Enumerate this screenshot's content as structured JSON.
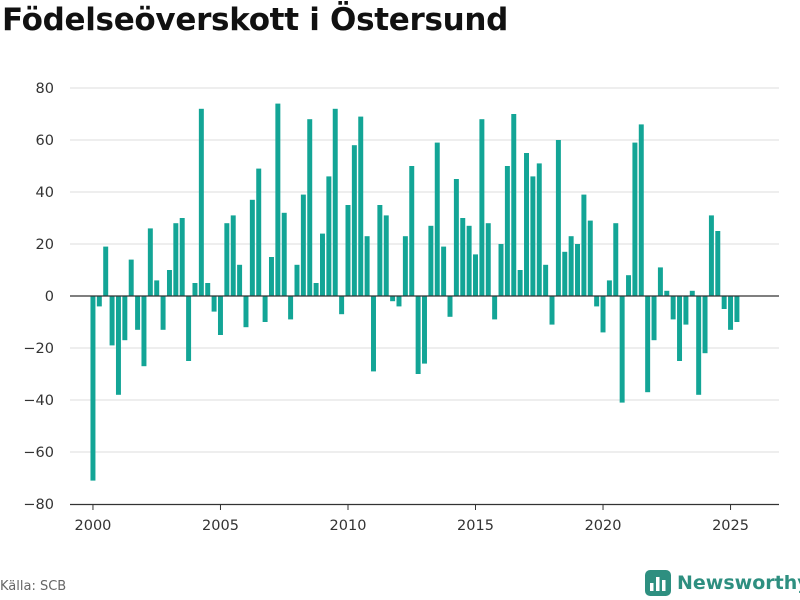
{
  "title": "Födelseöverskott i Östersund",
  "source": "Källa: SCB",
  "brand": {
    "name": "Newsworthy",
    "icon": "bar-chart-logo-icon",
    "color": "#2e8f80"
  },
  "colors": {
    "bar": "#13a596",
    "grid": "#dddddd",
    "zero": "#333333",
    "axis": "#333333"
  },
  "chart_data": {
    "type": "bar",
    "title": "Födelseöverskott i Östersund",
    "xlabel": "",
    "ylabel": "",
    "ylim": [
      -80,
      80
    ],
    "yticks": [
      -80,
      -60,
      -40,
      -20,
      0,
      20,
      40,
      60,
      80
    ],
    "xticks": [
      2000,
      2005,
      2010,
      2015,
      2020,
      2025
    ],
    "xlim": [
      1999.1,
      2026.9
    ],
    "grid": true,
    "legend": "none",
    "series": [
      {
        "x": [
          2000.0,
          2000.25,
          2000.5,
          2000.75,
          2001.0,
          2001.25,
          2001.5,
          2001.75,
          2002.0,
          2002.25,
          2002.5,
          2002.75,
          2003.0,
          2003.25,
          2003.5,
          2003.75,
          2004.0,
          2004.25,
          2004.5,
          2004.75,
          2005.0,
          2005.25,
          2005.5,
          2005.75,
          2006.0,
          2006.25,
          2006.5,
          2006.75,
          2007.0,
          2007.25,
          2007.5,
          2007.75,
          2008.0,
          2008.25,
          2008.5,
          2008.75,
          2009.0,
          2009.25,
          2009.5,
          2009.75,
          2010.0,
          2010.25,
          2010.5,
          2010.75,
          2011.0,
          2011.25,
          2011.5,
          2011.75,
          2012.0,
          2012.25,
          2012.5,
          2012.75,
          2013.0,
          2013.25,
          2013.5,
          2013.75,
          2014.0,
          2014.25,
          2014.5,
          2014.75,
          2015.0,
          2015.25,
          2015.5,
          2015.75,
          2016.0,
          2016.25,
          2016.5,
          2016.75,
          2017.0,
          2017.25,
          2017.5,
          2017.75,
          2018.0,
          2018.25,
          2018.5,
          2018.75,
          2019.0,
          2019.25,
          2019.5,
          2019.75,
          2020.0,
          2020.25,
          2020.5,
          2020.75,
          2021.0,
          2021.25,
          2021.5,
          2021.75,
          2022.0,
          2022.25,
          2022.5,
          2022.75,
          2023.0,
          2023.25,
          2023.5,
          2023.75,
          2024.0,
          2024.25,
          2024.5,
          2024.75,
          2025.0,
          2025.25
        ],
        "values": [
          -71,
          -4,
          19,
          -19,
          -38,
          -17,
          14,
          -13,
          -27,
          26,
          6,
          -13,
          10,
          28,
          30,
          -25,
          5,
          72,
          5,
          -6,
          -15,
          28,
          31,
          12,
          -12,
          37,
          49,
          -10,
          15,
          74,
          32,
          -9,
          12,
          39,
          68,
          5,
          24,
          46,
          72,
          -7,
          35,
          58,
          69,
          23,
          -29,
          35,
          31,
          -2,
          -4,
          23,
          50,
          -30,
          -26,
          27,
          59,
          19,
          -8,
          45,
          30,
          27,
          16,
          68,
          28,
          -9,
          20,
          50,
          70,
          10,
          55,
          46,
          51,
          12,
          -11,
          60,
          17,
          23,
          20,
          39,
          29,
          -4,
          -14,
          6,
          28,
          -41,
          8,
          59,
          66,
          -37,
          -17,
          11,
          2,
          -9,
          -25,
          -11,
          2,
          -38,
          -22,
          31,
          25,
          -5,
          -13,
          -10
        ]
      }
    ]
  }
}
